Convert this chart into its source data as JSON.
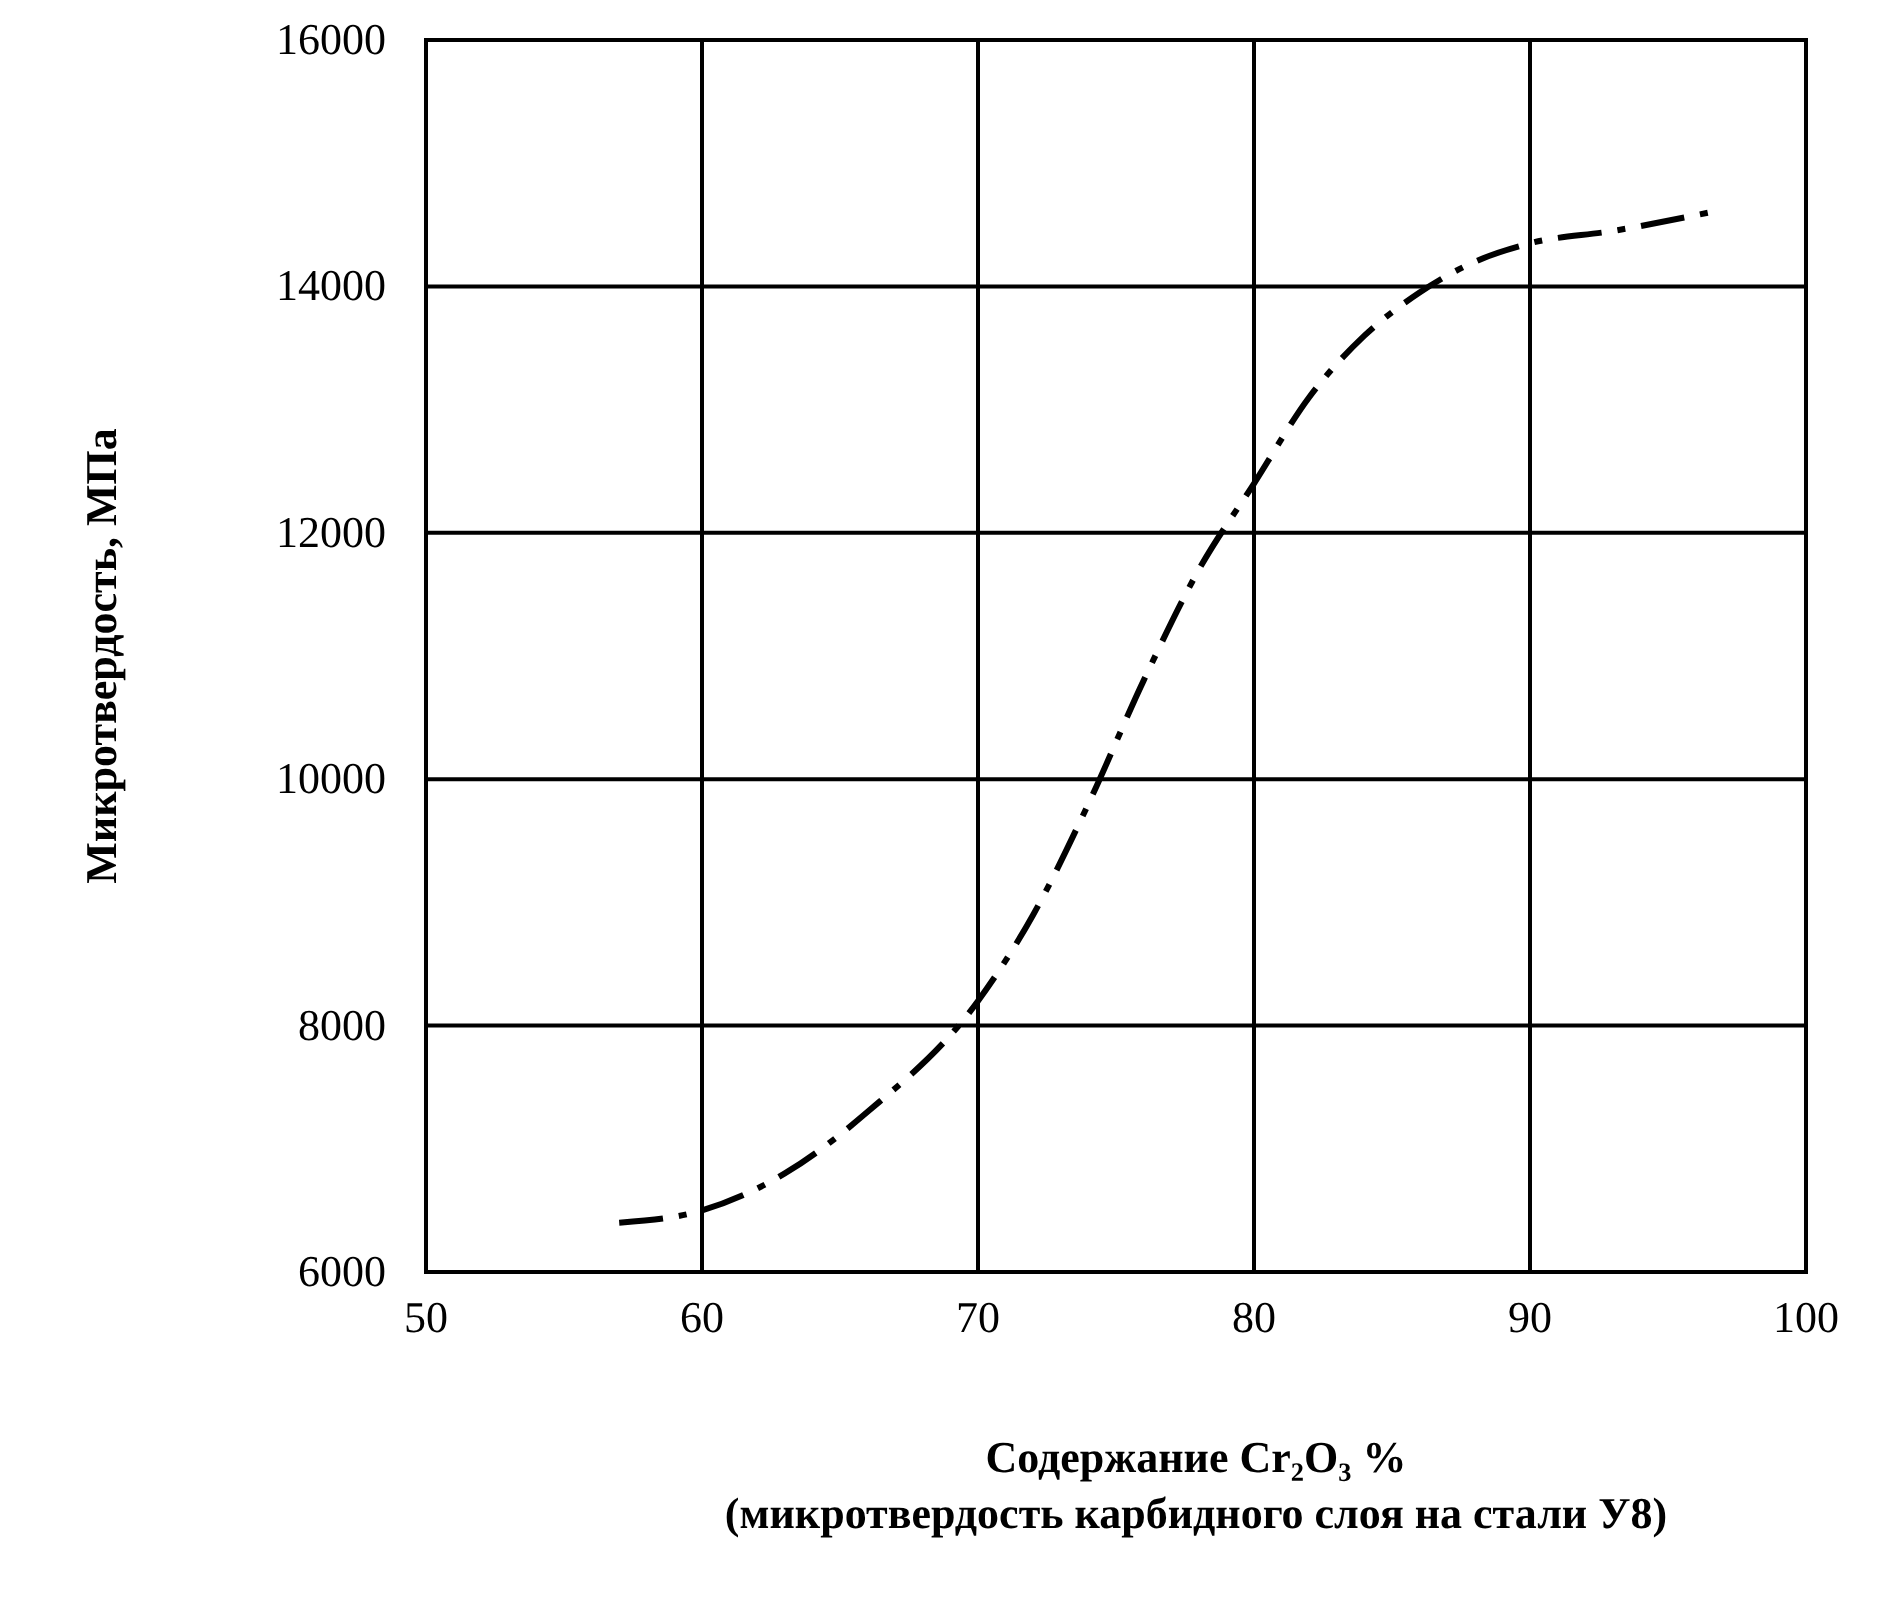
{
  "chart_data": {
    "type": "line",
    "xlabel": "Содержание Cr₂O₃ %",
    "ylabel": "Микротвердость, МПа",
    "annotations": [
      "(микротвердость карбидного слоя на стали У8)"
    ],
    "x": [
      57,
      60,
      63,
      66,
      70,
      72,
      74,
      76,
      78,
      80,
      82,
      84,
      86,
      88,
      90,
      93,
      96.5
    ],
    "series": [
      {
        "color": "#000000",
        "values": [
          6400,
          6500,
          6800,
          7300,
          8200,
          8900,
          9800,
          10800,
          11700,
          12400,
          13100,
          13600,
          13950,
          14200,
          14350,
          14450,
          14600
        ]
      }
    ],
    "xlim": [
      50,
      100
    ],
    "xticks": [
      50,
      60,
      70,
      80,
      90,
      100
    ],
    "ylim": [
      6000,
      16000
    ],
    "yticks": [
      6000,
      8000,
      10000,
      12000,
      14000,
      16000
    ],
    "grid": true,
    "marker": "none",
    "line_style": "dashed"
  }
}
